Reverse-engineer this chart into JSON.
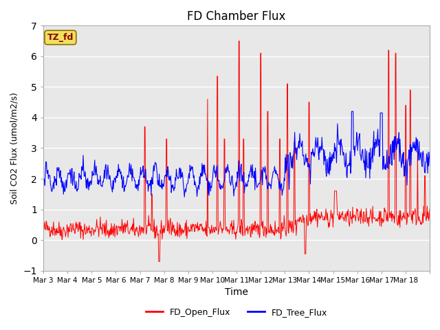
{
  "title": "FD Chamber Flux",
  "xlabel": "Time",
  "ylabel": "Soil CO2 Flux (umol/m2/s)",
  "ylim": [
    -1.0,
    7.0
  ],
  "yticks": [
    -1.0,
    0.0,
    1.0,
    2.0,
    3.0,
    4.0,
    5.0,
    6.0,
    7.0
  ],
  "xtick_labels": [
    "Mar 3",
    "Mar 4",
    "Mar 5",
    "Mar 6",
    "Mar 7",
    "Mar 8",
    "Mar 9",
    "Mar 10",
    "Mar 11",
    "Mar 12",
    "Mar 13",
    "Mar 14",
    "Mar 15",
    "Mar 16",
    "Mar 17",
    "Mar 18"
  ],
  "legend_labels": [
    "FD_Open_Flux",
    "FD_Tree_Flux"
  ],
  "legend_colors": [
    "red",
    "blue"
  ],
  "annotation_text": "TZ_fd",
  "annotation_bg": "#f0e060",
  "annotation_fg": "#8b0000",
  "open_color": "red",
  "tree_color": "blue",
  "background_color": "#e8e8e8",
  "grid_color": "white",
  "n_days": 16,
  "points_per_day": 48
}
